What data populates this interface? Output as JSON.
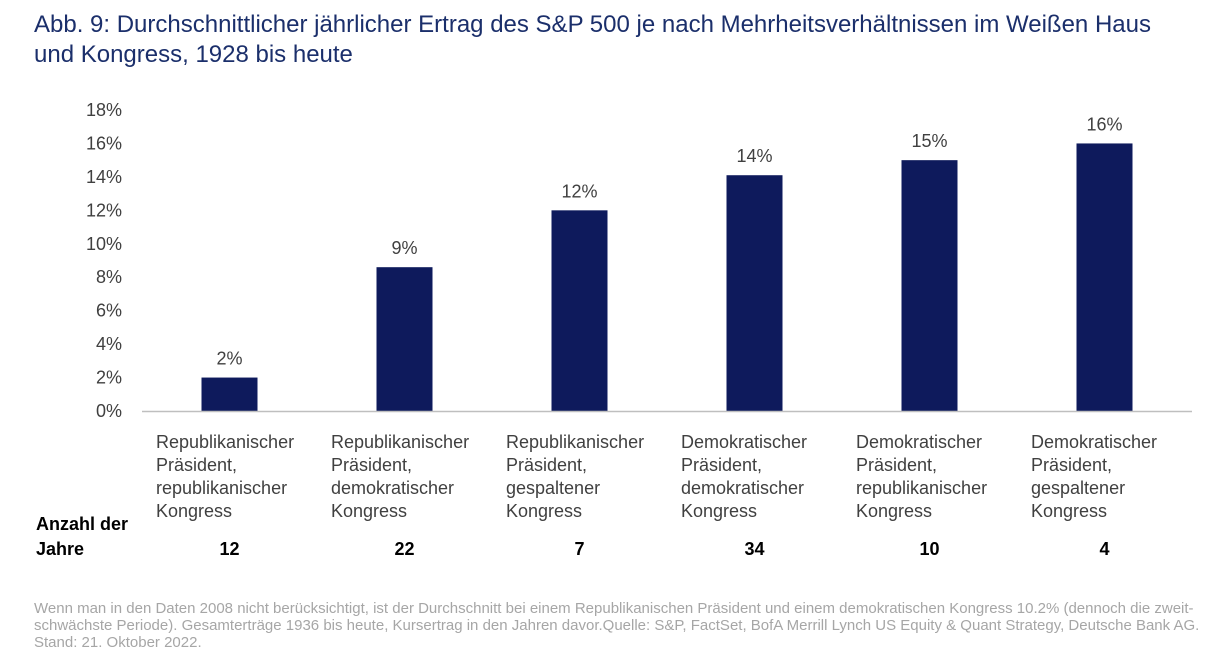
{
  "title": "Abb. 9: Durchschnittlicher jährlicher Ertrag des S&P 500 je nach Mehrheitsverhältnissen im Weißen Haus und Kongress, 1928 bis heute",
  "footnote": "Wenn man in den Daten 2008 nicht berücksichtigt, ist der Durchschnitt bei einem Republikanischen Präsident und einem demokratischen Kongress 10.2% (dennoch die zweit-schwächste Periode). Gesamterträge 1936 bis heute, Kursertrag in den Jahren davor.Quelle: S&P, FactSet, BofA Merrill Lynch US Equity & Quant Strategy, Deutsche Bank AG. Stand: 21. Oktober 2022.",
  "colors": {
    "bar": "#0e1a5c",
    "title": "#1b2f6b",
    "footnote": "#a6a6a6",
    "axis_text": "#404040",
    "baseline": "#bfbfbf"
  },
  "chart_data": {
    "type": "bar",
    "categories": [
      [
        "Republikanischer",
        "Präsident,",
        "republikanischer",
        "Kongress"
      ],
      [
        "Republikanischer",
        "Präsident,",
        "demokratischer",
        "Kongress"
      ],
      [
        "Republikanischer",
        "Präsident,",
        "gespaltener",
        "Kongress"
      ],
      [
        "Demokratischer",
        "Präsident,",
        "demokratischer",
        "Kongress"
      ],
      [
        "Demokratischer",
        "Präsident,",
        "republikanischer",
        "Kongress"
      ],
      [
        "Demokratischer",
        "Präsident,",
        "gespaltener",
        "Kongress"
      ]
    ],
    "values": [
      2.0,
      8.6,
      12.0,
      14.1,
      15.0,
      16.0
    ],
    "data_labels": [
      "2%",
      "9%",
      "12%",
      "14%",
      "15%",
      "16%"
    ],
    "ylim": [
      0,
      18
    ],
    "yticks": [
      0,
      2,
      4,
      6,
      8,
      10,
      12,
      14,
      16,
      18
    ],
    "ytick_labels": [
      "0%",
      "2%",
      "4%",
      "6%",
      "8%",
      "10%",
      "12%",
      "14%",
      "16%",
      "18%"
    ],
    "grid": false,
    "legend": "none",
    "years_label": [
      "Anzahl der",
      "Jahre"
    ],
    "years": [
      "12",
      "22",
      "7",
      "34",
      "10",
      "4"
    ]
  }
}
